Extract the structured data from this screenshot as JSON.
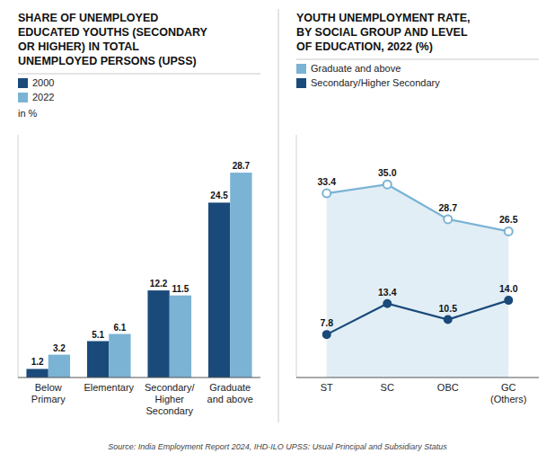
{
  "chart_data": [
    {
      "type": "bar",
      "title": "SHARE OF UNEMPLOYED\nEDUCATED YOUTHS (SECONDARY\nOR HIGHER) IN TOTAL\nUNEMPLOYED PERSONS (UPSS)",
      "categories": [
        "Below\nPrimary",
        "Elementary",
        "Secondary/\nHigher\nSecondary",
        "Graduate\nand above"
      ],
      "series": [
        {
          "name": "2000",
          "color": "#1a4a7a",
          "values": [
            1.2,
            5.1,
            12.2,
            24.5
          ]
        },
        {
          "name": "2022",
          "color": "#7ab3d4",
          "values": [
            3.2,
            6.1,
            11.5,
            28.7
          ]
        }
      ],
      "ylim": [
        0,
        34
      ],
      "grid": false,
      "legend": "upper left",
      "data_labels": true,
      "tick_labels": "x",
      "annotations": [
        "in %",
        "Source: India Employment Report 2024, IHD-ILO UPSS: Usual Principal and Subsidiary Status"
      ]
    },
    {
      "type": "line",
      "title": "YOUTH UNEMPLOYMENT RATE,\nBY SOCIAL GROUP AND LEVEL\nOF EDUCATION, 2022 (%)",
      "categories": [
        "ST",
        "SC",
        "OBC",
        "GC\n(Others)"
      ],
      "series": [
        {
          "name": "Graduate and above",
          "color": "#7ab3d4",
          "marker": "circle-open",
          "values": [
            33.4,
            35.0,
            28.7,
            26.5
          ],
          "value_labels": [
            "33.4",
            "35.0",
            "28.7",
            "26.5"
          ]
        },
        {
          "name": "Secondary/Higher Secondary",
          "color": "#1a4a7a",
          "marker": "circle",
          "values": [
            7.8,
            13.4,
            10.5,
            14.0
          ],
          "value_labels": [
            "7.8",
            "13.4",
            "10.5",
            "14.0"
          ]
        }
      ],
      "ylim": [
        0,
        44
      ],
      "grid": false,
      "legend": "upper left",
      "data_labels": true,
      "tick_labels": "x"
    }
  ]
}
